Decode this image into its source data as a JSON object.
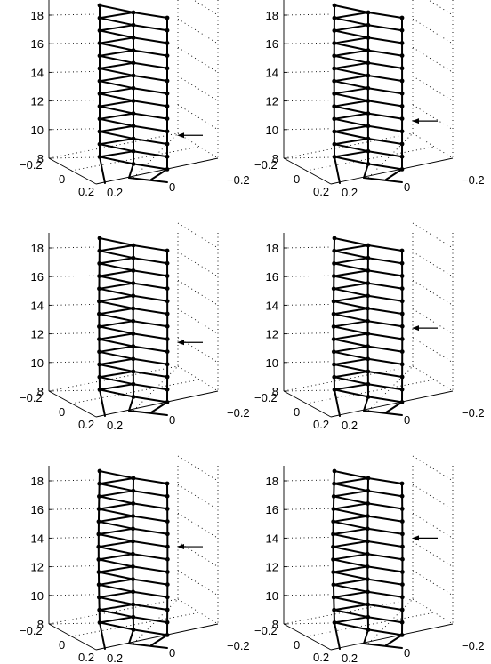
{
  "figure": {
    "panels": [
      {
        "id": "p1",
        "arrow_z": 9.6,
        "arrow_label": "force-arrow"
      },
      {
        "id": "p2",
        "arrow_z": 10.6,
        "arrow_label": "force-arrow"
      },
      {
        "id": "p3",
        "arrow_z": 11.4,
        "arrow_label": "force-arrow"
      },
      {
        "id": "p4",
        "arrow_z": 12.4,
        "arrow_label": "force-arrow"
      },
      {
        "id": "p5",
        "arrow_z": 13.4,
        "arrow_label": "force-arrow"
      },
      {
        "id": "p6",
        "arrow_z": 14.0,
        "arrow_label": "force-arrow"
      }
    ],
    "z_ticks": [
      "8",
      "10",
      "12",
      "14",
      "16",
      "18"
    ],
    "x_ticks_left": [
      "−0.2",
      "0",
      "0.2"
    ],
    "y_ticks_right": [
      "0.2",
      "0",
      "−0.2"
    ],
    "line_color": "#000000",
    "background": "#ffffff"
  }
}
